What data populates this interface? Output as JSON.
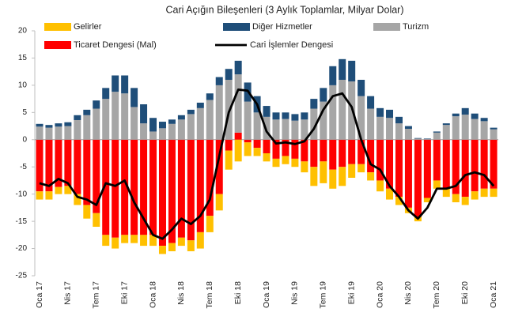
{
  "chart_data": {
    "type": "stacked_bar_line",
    "title": "Cari Açığın Bileşenleri (3 Aylık Toplamlar, Milyar Dolar)",
    "categories": [
      "Oca 17",
      null,
      null,
      "Nis 17",
      null,
      null,
      "Tem 17",
      null,
      null,
      "Eki 17",
      null,
      null,
      "Oca 18",
      null,
      null,
      "Nis 18",
      null,
      null,
      "Tem 18",
      null,
      null,
      "Eki 18",
      null,
      null,
      "Oca 19",
      null,
      null,
      "Nis 19",
      null,
      null,
      "Tem 19",
      null,
      null,
      "Eki 19",
      null,
      null,
      "Oca 20",
      null,
      null,
      "Nis 20",
      null,
      null,
      "Tem 20",
      null,
      null,
      "Eki 20",
      null,
      null,
      "Oca 21"
    ],
    "series": [
      {
        "name": "Ticaret Dengesi (Mal)",
        "color": "#ff0000",
        "kind": "bar",
        "values": [
          -9.5,
          -9.5,
          -8.7,
          -8.5,
          -10,
          -12,
          -13.5,
          -17.5,
          -18,
          -17.5,
          -17.5,
          -17.5,
          -17.5,
          -19.5,
          -19,
          -18,
          -18.5,
          -17,
          -14,
          -10,
          -2,
          1.3,
          -0.5,
          -1.5,
          -2.5,
          -3.5,
          -3,
          -3.5,
          -4,
          -5,
          -4,
          -5.5,
          -5,
          -4.5,
          -4.5,
          -6,
          -7.5,
          -9,
          -10.5,
          -12.5,
          -14.2,
          -10.7,
          -7.5,
          -9,
          -10,
          -10.5,
          -9.5,
          -9,
          -9
        ]
      },
      {
        "name": "Gelirler",
        "color": "#ffc000",
        "kind": "bar",
        "values": [
          -1.5,
          -1.5,
          -1.3,
          -1.5,
          -2,
          -2.5,
          -2.5,
          -2,
          -2,
          -1.5,
          -1.5,
          -2,
          -2,
          -1.5,
          -1.5,
          -1.5,
          -2,
          -3,
          -3,
          -3,
          -3.5,
          -4,
          -2.5,
          -1.5,
          -1.5,
          -1.5,
          -1.5,
          -1.5,
          -2,
          -3.5,
          -4,
          -3.5,
          -3.5,
          -2.5,
          -1.5,
          -1.5,
          -2,
          -2,
          -1.5,
          -1,
          -0.8,
          -0.8,
          -1.5,
          -1.5,
          -1.5,
          -1.5,
          -1.5,
          -1.5,
          -1.5
        ]
      },
      {
        "name": "Turizm",
        "color": "#a6a6a6",
        "kind": "bar",
        "values": [
          2.4,
          2.2,
          2.4,
          2.5,
          3.6,
          4.5,
          5.7,
          7.5,
          8.8,
          8.5,
          6,
          3,
          1.5,
          2.1,
          2.9,
          3.7,
          4.7,
          5.8,
          7.3,
          10,
          11,
          10.7,
          7,
          5,
          4.2,
          3.7,
          3.8,
          3.5,
          3.7,
          5.7,
          7,
          10,
          11,
          10.7,
          8,
          5.7,
          4.2,
          4,
          3,
          2,
          0.2,
          0.1,
          1.3,
          2.7,
          4.3,
          4.6,
          3.8,
          3.4,
          1.9
        ]
      },
      {
        "name": "Diğer Hizmetler",
        "color": "#1f4e79",
        "kind": "bar",
        "values": [
          0.5,
          0.5,
          0.6,
          0.7,
          0.9,
          1,
          1.5,
          2,
          3,
          3.3,
          3.5,
          3.5,
          2.5,
          1.2,
          0.8,
          0.8,
          0.8,
          1,
          1.2,
          1.5,
          2,
          2.5,
          3.5,
          3,
          2,
          1.3,
          1.2,
          1.2,
          1.3,
          1.8,
          2.5,
          3.5,
          3.8,
          3.8,
          3,
          2.3,
          1.6,
          1.5,
          1.2,
          0.5,
          0.1,
          0.1,
          0.2,
          0.3,
          0.5,
          1.2,
          1,
          0.6,
          0.3
        ]
      },
      {
        "name": "Cari İşlemler Dengesi",
        "color": "#000000",
        "kind": "line",
        "values": [
          -8,
          -8.5,
          -7.2,
          -8,
          -10.5,
          -11,
          -12,
          -8,
          -8.5,
          -7.5,
          -11.5,
          -14.5,
          -17.5,
          -18.2,
          -16.5,
          -14.5,
          -15.5,
          -14,
          -11,
          -3,
          5,
          9.2,
          9,
          6.5,
          1.5,
          -0.7,
          -0.5,
          -0.8,
          -0.3,
          2,
          5.5,
          8,
          8.5,
          6,
          0,
          -4.5,
          -5.5,
          -8.5,
          -10.5,
          -13,
          -14.5,
          -12.5,
          -9,
          -9,
          -8.5,
          -6.5,
          -6,
          -6.5,
          -8.5
        ]
      }
    ],
    "ylim": [
      -25,
      20
    ],
    "yticks": [
      -25,
      -20,
      -15,
      -10,
      -5,
      0,
      5,
      10,
      15,
      20
    ],
    "grid": false
  }
}
